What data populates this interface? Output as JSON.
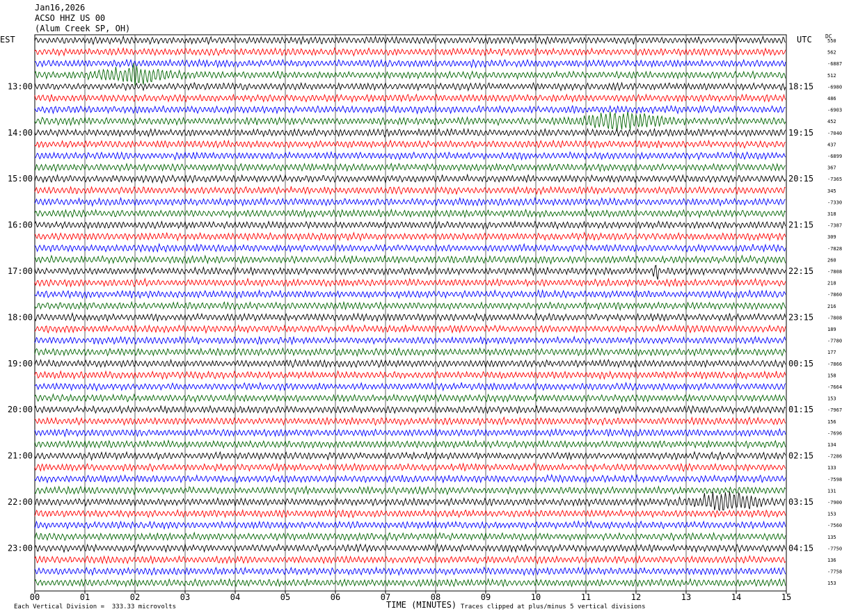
{
  "header": {
    "date": "Jan16,2026",
    "station": "ACSO HHZ US 00",
    "location": "(Alum Creek SP, OH)"
  },
  "left_tz": "EST",
  "right_tz": "UTC",
  "dc_label": "DC",
  "footer": {
    "division": "Each Vertical Division =  333.33 microvolts",
    "clip_note": "Traces clipped at plus/minus 5 vertical divisions"
  },
  "chart_data": {
    "type": "line",
    "xlabel": "TIME (MINUTES)",
    "xlim": [
      0,
      15
    ],
    "x_ticks": [
      "00",
      "01",
      "02",
      "03",
      "04",
      "05",
      "06",
      "07",
      "08",
      "09",
      "10",
      "11",
      "12",
      "13",
      "14",
      "15"
    ],
    "left_hour_labels": [
      "13:00",
      "14:00",
      "15:00",
      "16:00",
      "17:00",
      "18:00",
      "19:00",
      "20:00",
      "21:00",
      "22:00",
      "23:00"
    ],
    "right_hour_labels": [
      "18:15",
      "19:15",
      "20:15",
      "21:15",
      "22:15",
      "23:15",
      "00:15",
      "01:15",
      "02:15",
      "03:15",
      "04:15"
    ],
    "rows_per_hour": 4,
    "trace_colors": [
      "#000000",
      "#ff0000",
      "#0000ff",
      "#006400"
    ],
    "dc_offsets": [
      "550",
      "562",
      "-6887",
      "512",
      "-6980",
      "486",
      "-6903",
      "452",
      "-7040",
      "437",
      "-6899",
      "367",
      "-7365",
      "345",
      "-7330",
      "318",
      "-7387",
      "309",
      "-7828",
      "260",
      "-7808",
      "218",
      "-7860",
      "216",
      "-7808",
      "189",
      "-7780",
      "177",
      "-7866",
      "158",
      "-7664",
      "153",
      "-7967",
      "156",
      "-7696",
      "134",
      "-7286",
      "133",
      "-7598",
      "131",
      "-7900",
      "153",
      "-7560",
      "135",
      "-7750",
      "136",
      "-7758",
      "153"
    ],
    "events": [
      {
        "row": 7,
        "start_min": 10.5,
        "end_min": 13.0,
        "label": "burst"
      },
      {
        "row": 3,
        "start_min": 1.0,
        "end_min": 3.0,
        "label": "burst"
      },
      {
        "row": 40,
        "start_min": 12.8,
        "end_min": 14.8,
        "label": "burst"
      },
      {
        "row": 20,
        "start_min": 12.3,
        "end_min": 12.5,
        "label": "spike"
      }
    ],
    "grid": true
  }
}
